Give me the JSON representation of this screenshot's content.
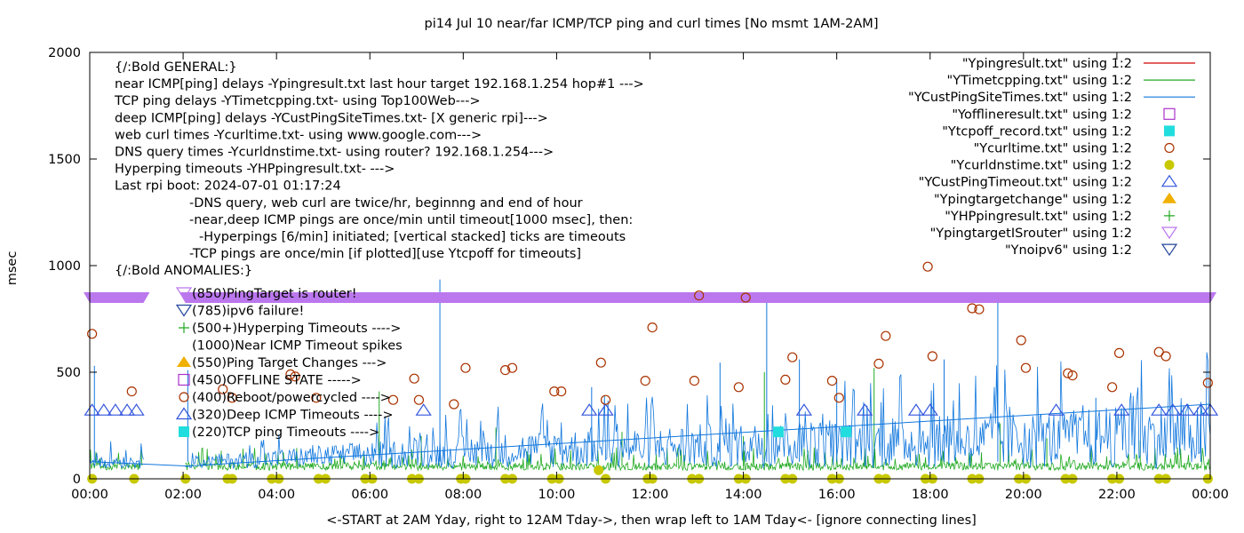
{
  "chart_data": {
    "type": "line",
    "title": "pi14 Jul 10  near/far ICMP/TCP ping and curl times [No msmt 1AM-2AM]",
    "xlabel": "<-START at 2AM Yday, right to 12AM Tday->, then wrap left to 1AM Tday<- [ignore connecting lines]",
    "ylabel": "msec",
    "xlim": [
      0,
      24
    ],
    "ylim": [
      0,
      2000
    ],
    "x_ticks": [
      "00:00",
      "02:00",
      "04:00",
      "06:00",
      "08:00",
      "10:00",
      "12:00",
      "14:00",
      "16:00",
      "18:00",
      "20:00",
      "22:00",
      "00:00"
    ],
    "y_ticks": [
      "0",
      "500",
      "1000",
      "1500",
      "2000"
    ],
    "grid": false,
    "legend_position": "top-right",
    "notes": [
      "{/:Bold GENERAL:}",
      "near ICMP[ping] delays -Ypingresult.txt last hour target 192.168.1.254 hop#1 --->",
      "TCP ping delays -YTimetcpping.txt- using Top100Web--->",
      "deep ICMP[ping] delays -YCustPingSiteTimes.txt- [X generic rpi]--->",
      "web curl times -Ycurltime.txt- using www.google.com--->",
      "DNS query times -Ycurldnstime.txt- using router? 192.168.1.254--->",
      "Hyperping timeouts -YHPpingresult.txt- --->",
      "Last rpi boot: 2024-07-01 01:17:24",
      "-DNS query, web curl are twice/hr, beginnng and end of hour",
      "-near,deep ICMP pings are once/min until timeout[1000 msec], then:",
      "-Hyperpings [6/min] initiated; [vertical stacked] ticks are timeouts",
      "-TCP pings are once/min [if plotted][use Ytcpoff for timeouts]",
      "{/:Bold ANOMALIES:}"
    ],
    "anomalies": [
      {
        "label": "(850)PingTarget is router!",
        "symbol": "triangle-down-violet"
      },
      {
        "label": "(785)ipv6 failure!",
        "symbol": "triangle-down-navy"
      },
      {
        "label": "(500+)Hyperping Timeouts ---->",
        "symbol": "plus-green"
      },
      {
        "label": "(1000)Near ICMP Timeout spikes",
        "symbol": "none"
      },
      {
        "label": "(550)Ping Target Changes --->",
        "symbol": "triangle-up-orange"
      },
      {
        "label": "(450)OFFLINE STATE ----->",
        "symbol": "square-open-purple"
      },
      {
        "label": "(400)Reboot/powercycled ---->",
        "symbol": "circle-open-brown"
      },
      {
        "label": "(320)Deep ICMP Timeouts ---->",
        "symbol": "triangle-up-blue"
      },
      {
        "label": "(220)TCP ping Timeouts ---->",
        "symbol": "square-cyan"
      }
    ],
    "legend": [
      {
        "name": "\"Ypingresult.txt\" using 1:2",
        "symbol": "line",
        "color": "#d40000"
      },
      {
        "name": "\"YTimetcpping.txt\" using 1:2",
        "symbol": "line",
        "color": "#22aa22"
      },
      {
        "name": "\"YCustPingSiteTimes.txt\" using 1:2",
        "symbol": "line",
        "color": "#1177dd"
      },
      {
        "name": "\"Yofflineresult.txt\" using 1:2",
        "symbol": "square-open",
        "color": "#aa33cc"
      },
      {
        "name": "\"Ytcpoff_record.txt\" using 1:2",
        "symbol": "square-filled",
        "color": "#22dddd"
      },
      {
        "name": "\"Ycurltime.txt\" using 1:2",
        "symbol": "circle-open",
        "color": "#aa3300"
      },
      {
        "name": "\"Ycurldnstime.txt\" using 1:2",
        "symbol": "circle-filled",
        "color": "#c8c800"
      },
      {
        "name": "\"YCustPingTimeout.txt\" using 1:2",
        "symbol": "triangle-up-open",
        "color": "#3355dd"
      },
      {
        "name": "\"Ypingtargetchange\" using 1:2",
        "symbol": "triangle-up-filled",
        "color": "#f0b000"
      },
      {
        "name": "\"YHPpingresult.txt\" using 1:2",
        "symbol": "plus",
        "color": "#22aa22"
      },
      {
        "name": "\"YpingtargetISrouter\" using 1:2",
        "symbol": "triangle-down-open",
        "color": "#bb77ee"
      },
      {
        "name": "\"Ynoipv6\" using 1:2",
        "symbol": "triangle-down-open",
        "color": "#224499"
      }
    ],
    "series": [
      {
        "name": "\"Ycurltime.txt\" using 1:2",
        "kind": "points",
        "x": [
          0.05,
          0.9,
          2.85,
          3.05,
          4.3,
          4.4,
          4.85,
          6.5,
          6.95,
          7.05,
          7.8,
          8.05,
          8.9,
          9.05,
          9.95,
          10.1,
          10.95,
          11.05,
          11.9,
          12.05,
          12.95,
          13.05,
          13.9,
          14.05,
          14.9,
          15.05,
          15.9,
          16.05,
          16.9,
          17.05,
          17.95,
          18.05,
          18.9,
          19.05,
          19.95,
          20.05,
          20.95,
          21.05,
          21.9,
          22.05,
          22.9,
          23.05,
          23.95
        ],
        "y": [
          680,
          410,
          420,
          380,
          490,
          480,
          380,
          370,
          470,
          370,
          350,
          520,
          510,
          520,
          410,
          410,
          545,
          370,
          460,
          710,
          460,
          860,
          430,
          850,
          465,
          570,
          460,
          380,
          540,
          670,
          995,
          575,
          800,
          795,
          650,
          520,
          495,
          485,
          430,
          590,
          595,
          575,
          450
        ]
      },
      {
        "name": "\"Ycurldnstime.txt\" using 1:2",
        "kind": "points",
        "x": [
          0.05,
          0.95,
          2.05,
          2.95,
          3.05,
          3.9,
          4.05,
          4.9,
          5.05,
          5.9,
          6.05,
          6.9,
          7.05,
          7.95,
          8.05,
          8.9,
          9.05,
          9.9,
          10.05,
          10.9,
          11.05,
          11.95,
          12.05,
          12.9,
          13.05,
          13.9,
          14.05,
          14.9,
          15.05,
          15.9,
          16.05,
          16.9,
          17.05,
          17.9,
          18.05,
          18.9,
          19.05,
          19.9,
          20.05,
          20.9,
          21.05,
          21.9,
          22.05,
          22.9,
          23.05,
          23.95
        ],
        "y": [
          0,
          0,
          0,
          0,
          0,
          0,
          0,
          0,
          0,
          0,
          0,
          0,
          0,
          0,
          0,
          0,
          0,
          0,
          0,
          40,
          0,
          0,
          0,
          0,
          0,
          0,
          0,
          0,
          0,
          0,
          0,
          0,
          0,
          0,
          0,
          0,
          0,
          0,
          0,
          0,
          0,
          0,
          0,
          0,
          0,
          0
        ]
      },
      {
        "name": "\"YCustPingTimeout.txt\" using 1:2",
        "kind": "points",
        "x": [
          0.05,
          0.3,
          0.55,
          0.8,
          1.0,
          7.15,
          10.7,
          11.05,
          15.3,
          16.6,
          17.7,
          18.0,
          20.7,
          22.1,
          22.9,
          23.2,
          23.5,
          23.8,
          24.0
        ],
        "y": [
          320,
          320,
          320,
          320,
          320,
          320,
          320,
          320,
          320,
          320,
          320,
          320,
          320,
          320,
          320,
          320,
          320,
          320,
          320
        ]
      },
      {
        "name": "\"Ytcpoff_record.txt\" using 1:2",
        "kind": "points",
        "x": [
          14.75,
          16.2
        ],
        "y": [
          220,
          220
        ]
      },
      {
        "name": "\"YpingtargetISrouter\" using 1:2",
        "kind": "band",
        "x_ranges": [
          [
            0,
            1.15
          ],
          [
            2.05,
            24
          ]
        ],
        "y": 850
      },
      {
        "name": "\"YTimetcpping.txt\" using 1:2",
        "kind": "line",
        "typical_range": [
          40,
          100
        ],
        "spikes": [
          {
            "x": 6.2,
            "y": 410
          },
          {
            "x": 7.1,
            "y": 200
          },
          {
            "x": 8.7,
            "y": 240
          },
          {
            "x": 11.4,
            "y": 220
          },
          {
            "x": 14.0,
            "y": 200
          },
          {
            "x": 14.45,
            "y": 500
          },
          {
            "x": 16.8,
            "y": 520
          },
          {
            "x": 19.5,
            "y": 260
          },
          {
            "x": 20.5,
            "y": 190
          },
          {
            "x": 22.5,
            "y": 180
          }
        ]
      },
      {
        "name": "\"YCustPingSiteTimes.txt\" using 1:2",
        "kind": "line",
        "typical_range": [
          60,
          250
        ],
        "baseline": [
          [
            0,
            80
          ],
          [
            2,
            60
          ],
          [
            6,
            140
          ],
          [
            10,
            200
          ],
          [
            14,
            240
          ],
          [
            18,
            270
          ],
          [
            22,
            320
          ],
          [
            24,
            350
          ]
        ],
        "spikes": [
          {
            "x": 0.1,
            "y": 530
          },
          {
            "x": 2.1,
            "y": 510
          },
          {
            "x": 7.5,
            "y": 935
          },
          {
            "x": 10.75,
            "y": 430
          },
          {
            "x": 13.5,
            "y": 545
          },
          {
            "x": 14.5,
            "y": 870
          },
          {
            "x": 15.2,
            "y": 560
          },
          {
            "x": 16.0,
            "y": 470
          },
          {
            "x": 18.3,
            "y": 560
          },
          {
            "x": 19.45,
            "y": 850
          },
          {
            "x": 21.55,
            "y": 380
          },
          {
            "x": 23.8,
            "y": 360
          }
        ]
      }
    ]
  }
}
